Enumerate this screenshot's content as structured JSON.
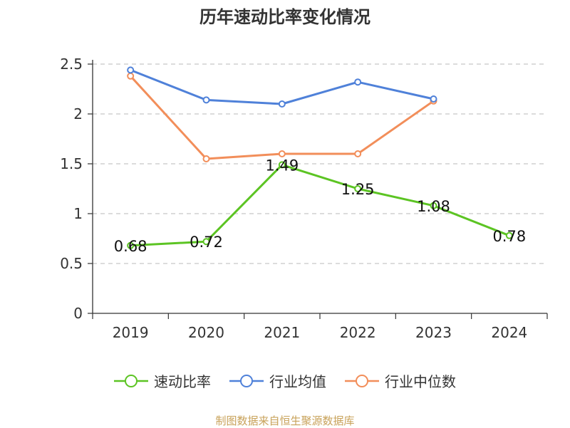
{
  "chart_data": {
    "type": "line",
    "title": "历年速动比率变化情况",
    "categories": [
      "2019",
      "2020",
      "2021",
      "2022",
      "2023",
      "2024"
    ],
    "ylim": [
      0,
      2.5
    ],
    "yticks": [
      "0",
      "0.5",
      "1",
      "1.5",
      "2",
      "2.5"
    ],
    "grid": true,
    "legend_position": "bottom",
    "series": [
      {
        "name": "速动比率",
        "color": "#5cc423",
        "values": [
          0.68,
          0.72,
          1.49,
          1.25,
          1.08,
          0.78
        ],
        "labels": [
          "0.68",
          "0.72",
          "1.49",
          "1.25",
          "1.08",
          "0.78"
        ]
      },
      {
        "name": "行业均值",
        "color": "#4f81d9",
        "values": [
          2.44,
          2.14,
          2.1,
          2.32,
          2.15,
          null
        ]
      },
      {
        "name": "行业中位数",
        "color": "#f28e5a",
        "values": [
          2.38,
          1.55,
          1.6,
          1.6,
          2.13,
          null
        ]
      }
    ]
  },
  "footer": {
    "source": "制图数据来自恒生聚源数据库"
  }
}
